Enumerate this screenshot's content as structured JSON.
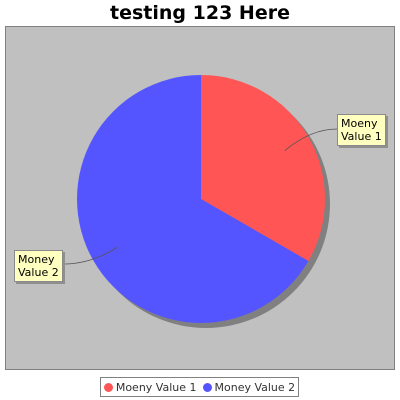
{
  "chart_data": {
    "type": "pie",
    "title": "testing 123 Here",
    "slices": [
      {
        "label": "Moeny Value 1",
        "label_lines": [
          "Moeny",
          "Value 1"
        ],
        "value": 1,
        "color": "#ff5555"
      },
      {
        "label": "Money Value 2",
        "label_lines": [
          "Money",
          "Value 2"
        ],
        "value": 2,
        "color": "#5555ff"
      }
    ],
    "legend": {
      "placement": "bottom",
      "items": [
        "Moeny Value 1",
        "Money Value 2"
      ]
    },
    "plot_background": "#c0c0c0"
  }
}
